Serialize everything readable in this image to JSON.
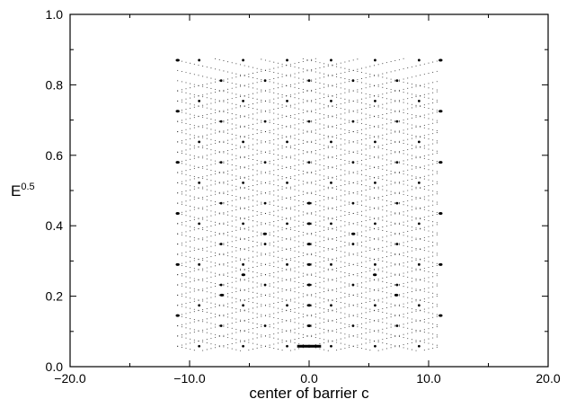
{
  "chart_data": {
    "type": "scatter",
    "title": "",
    "xlabel": "center of barrier c",
    "ylabel": "E",
    "ylabel_superscript": "0.5",
    "xlim": [
      -20.0,
      20.0
    ],
    "ylim": [
      0.0,
      1.0
    ],
    "x_ticks": [
      -20.0,
      -10.0,
      0.0,
      10.0,
      20.0
    ],
    "x_tick_labels": [
      "−20.0",
      "−10.0",
      "0.0",
      "10.0",
      "20.0"
    ],
    "y_ticks": [
      0.0,
      0.2,
      0.4,
      0.6,
      0.8,
      1.0
    ],
    "y_tick_labels": [
      "0.0",
      "0.2",
      "0.4",
      "0.6",
      "0.8",
      "1.0"
    ],
    "grid": false,
    "legend": "none",
    "point_color": "#000000",
    "series": [
      {
        "description_free": true,
        "c_range": [
          -11.0,
          11.0
        ],
        "fundamental": 0.058,
        "max_level": 15,
        "prominent_points": [
          {
            "x": 0.0,
            "y": 0.058
          },
          {
            "x": 0.0,
            "y": 0.116
          },
          {
            "x": 0.0,
            "y": 0.174
          },
          {
            "x": 0.0,
            "y": 0.232
          },
          {
            "x": 0.0,
            "y": 0.29
          },
          {
            "x": 0.0,
            "y": 0.348
          },
          {
            "x": 0.0,
            "y": 0.406
          },
          {
            "x": 0.0,
            "y": 0.464
          },
          {
            "x": -11.0,
            "y": 0.145
          },
          {
            "x": 11.0,
            "y": 0.145
          },
          {
            "x": -11.0,
            "y": 0.29
          },
          {
            "x": 11.0,
            "y": 0.29
          },
          {
            "x": -11.0,
            "y": 0.435
          },
          {
            "x": 11.0,
            "y": 0.435
          },
          {
            "x": -7.3,
            "y": 0.203
          },
          {
            "x": 7.3,
            "y": 0.203
          },
          {
            "x": -5.5,
            "y": 0.261
          },
          {
            "x": 5.5,
            "y": 0.261
          },
          {
            "x": -3.7,
            "y": 0.377
          },
          {
            "x": 3.7,
            "y": 0.377
          },
          {
            "x": -11.0,
            "y": 0.58
          },
          {
            "x": 11.0,
            "y": 0.58
          },
          {
            "x": -11.0,
            "y": 0.725
          },
          {
            "x": 11.0,
            "y": 0.725
          },
          {
            "x": -11.0,
            "y": 0.87
          },
          {
            "x": 11.0,
            "y": 0.87
          }
        ]
      }
    ]
  }
}
